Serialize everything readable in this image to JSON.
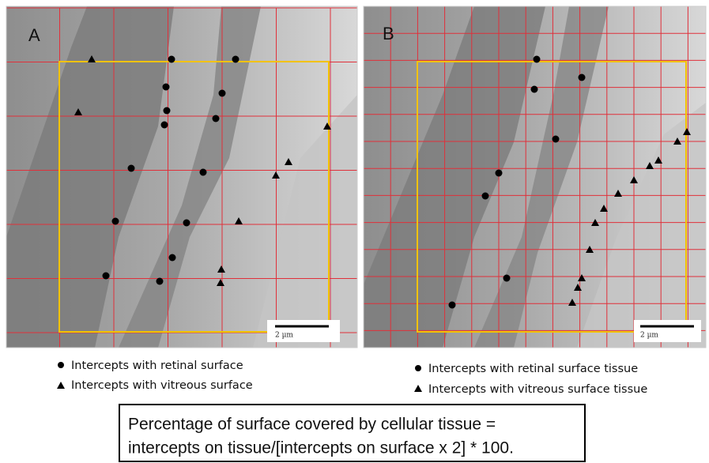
{
  "panels": [
    {
      "label": "A",
      "scale_bar": "2 µm",
      "legend": [
        "Intercepts with retinal surface",
        "Intercepts with vitreous surface"
      ]
    },
    {
      "label": "B",
      "scale_bar": "2 µm",
      "legend": [
        "Intercepts with retinal surface tissue",
        "Intercepts with vitreous surface tissue"
      ]
    }
  ],
  "caption_box": {
    "lines": [
      "Percentage of surface covered by cellular tissue =",
      "intercepts on tissue/[intercepts on surface x 2] * 100."
    ]
  }
}
